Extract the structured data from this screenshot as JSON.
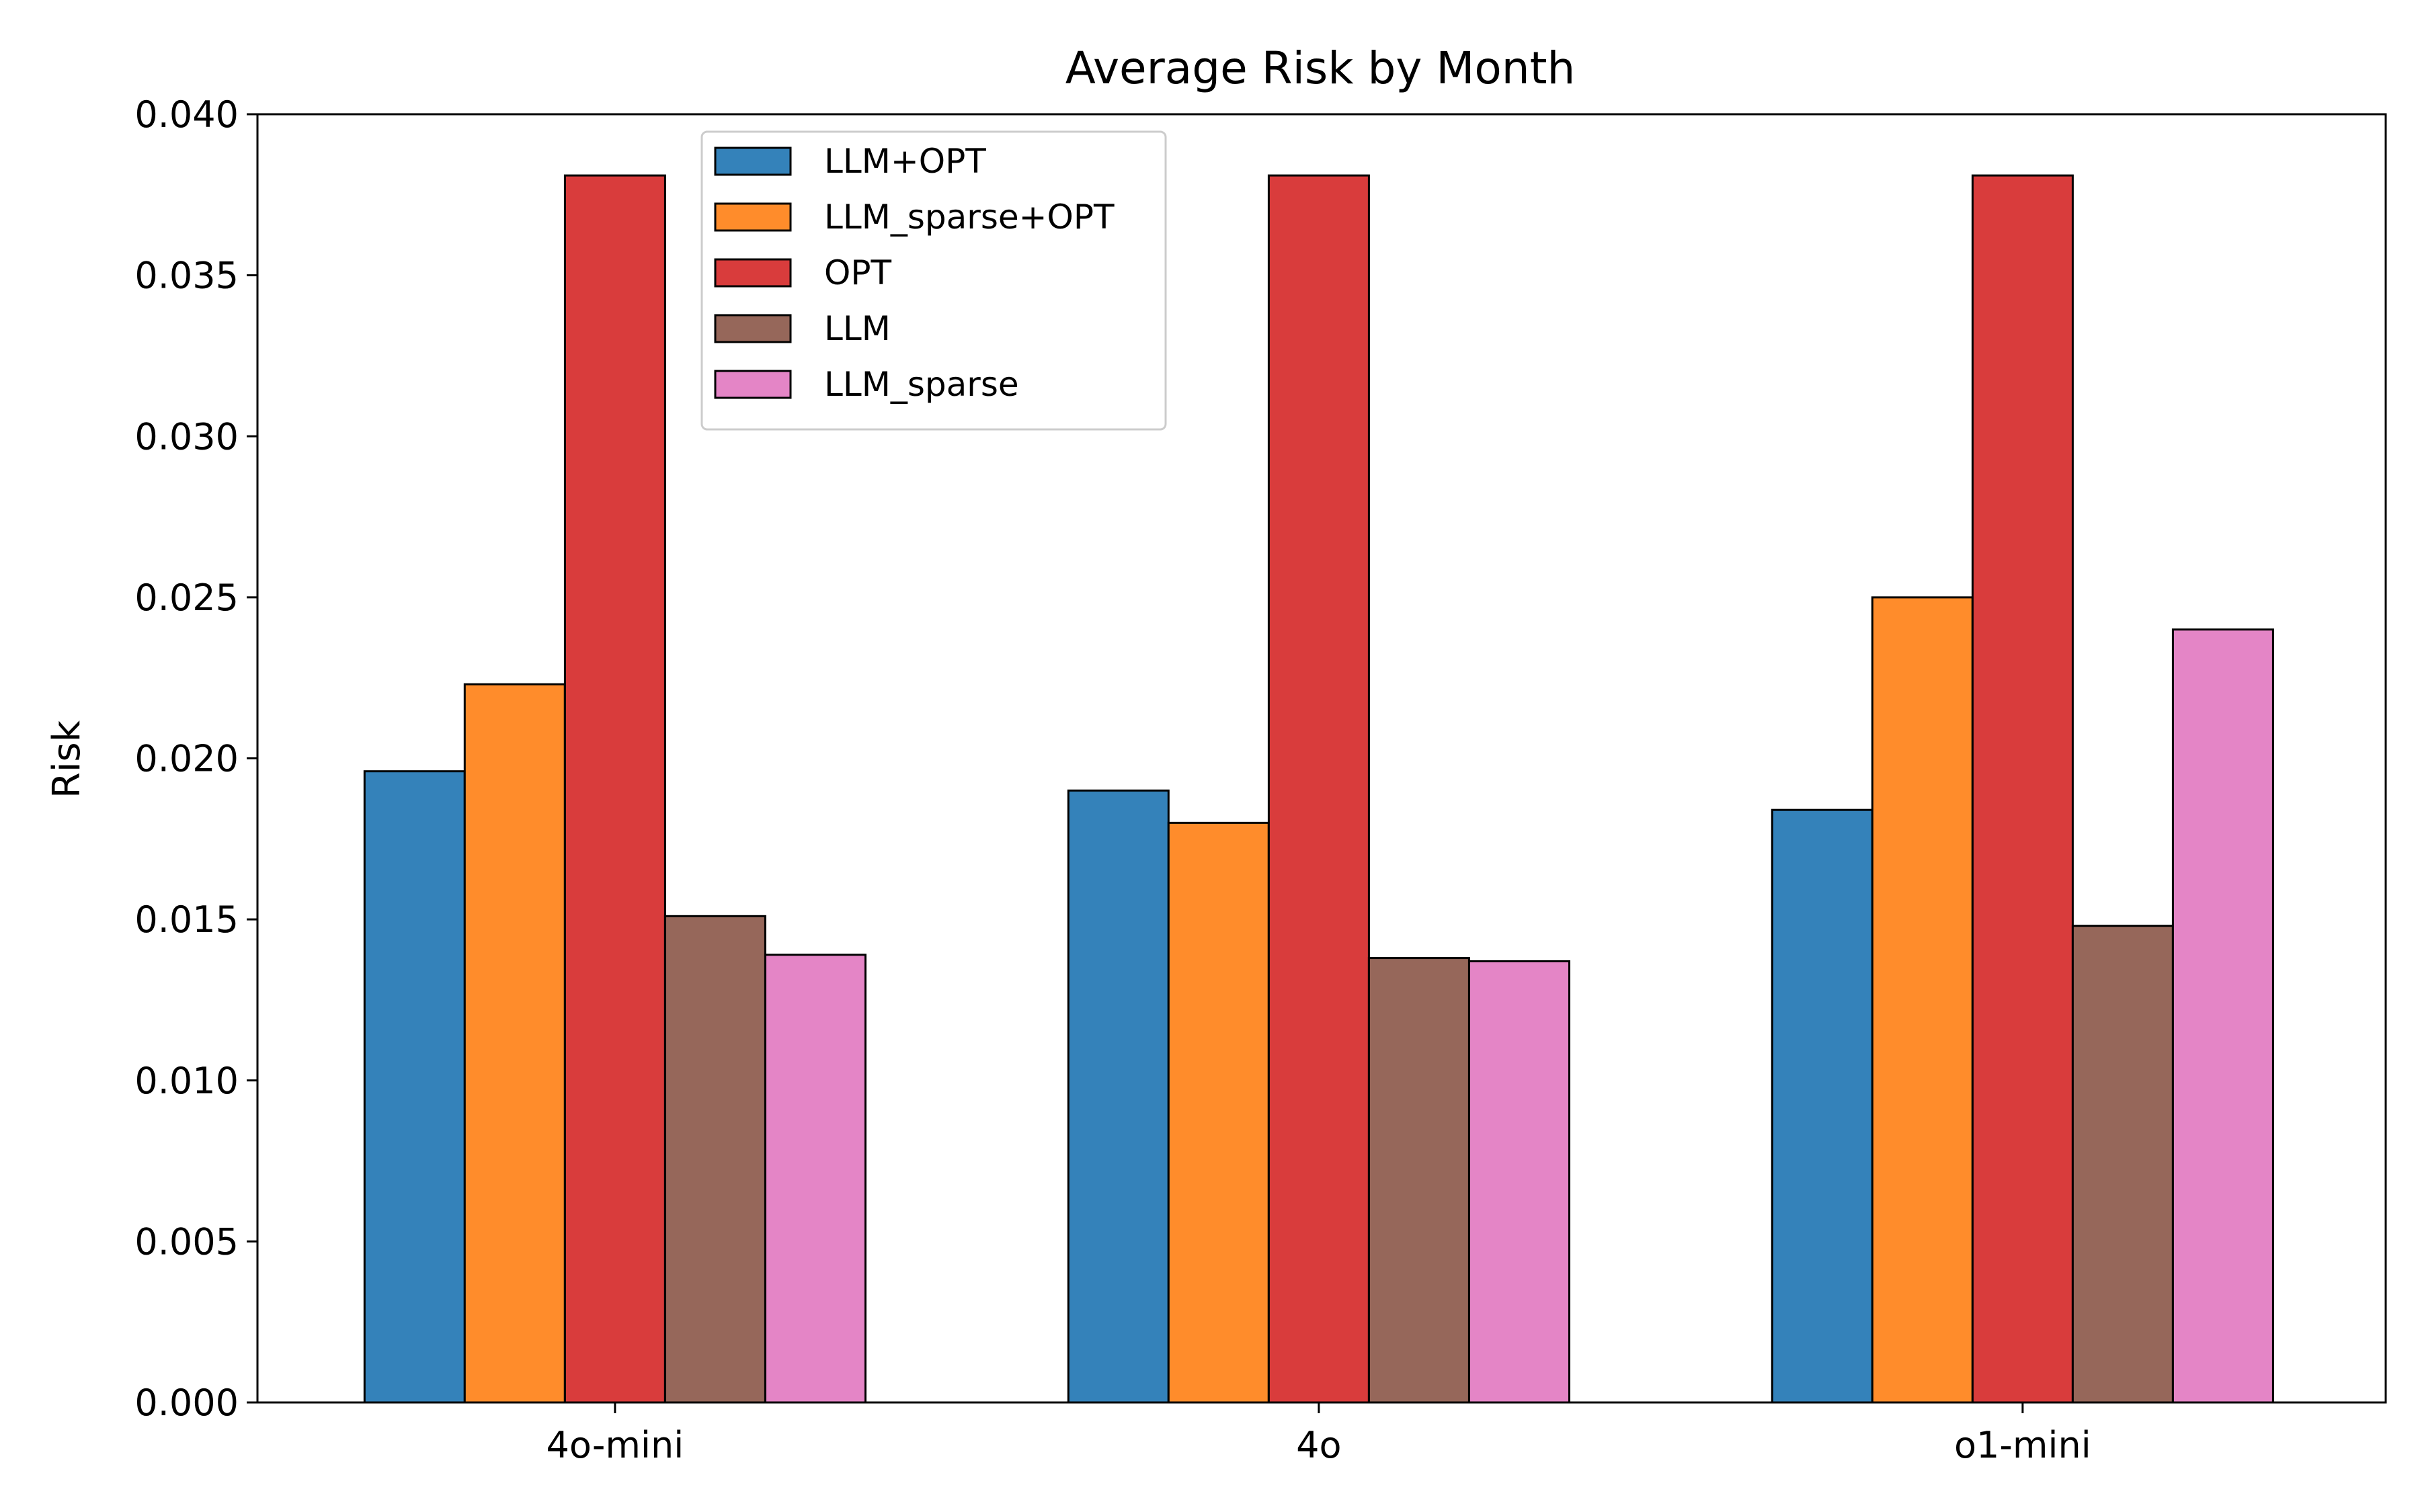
{
  "chart_data": {
    "type": "bar",
    "title": "Average Risk by Month",
    "xlabel": "",
    "ylabel": "Risk",
    "ylim": [
      0,
      0.04
    ],
    "yticks": [
      "0.000",
      "0.005",
      "0.010",
      "0.015",
      "0.020",
      "0.025",
      "0.030",
      "0.035",
      "0.040"
    ],
    "categories": [
      "4o-mini",
      "4o",
      "o1-mini"
    ],
    "legend_position": "top-left",
    "grid": false,
    "series": [
      {
        "name": "LLM+OPT",
        "color": "#3482ba",
        "values": [
          0.0196,
          0.019,
          0.0184
        ]
      },
      {
        "name": "LLM_sparse+OPT",
        "color": "#ff8c2b",
        "values": [
          0.0223,
          0.018,
          0.025
        ]
      },
      {
        "name": "OPT",
        "color": "#d93c3c",
        "values": [
          0.0381,
          0.0381,
          0.0381
        ]
      },
      {
        "name": "LLM",
        "color": "#96675a",
        "values": [
          0.0151,
          0.0138,
          0.0148
        ]
      },
      {
        "name": "LLM_sparse",
        "color": "#e485c6",
        "values": [
          0.0139,
          0.0137,
          0.024
        ]
      }
    ]
  }
}
